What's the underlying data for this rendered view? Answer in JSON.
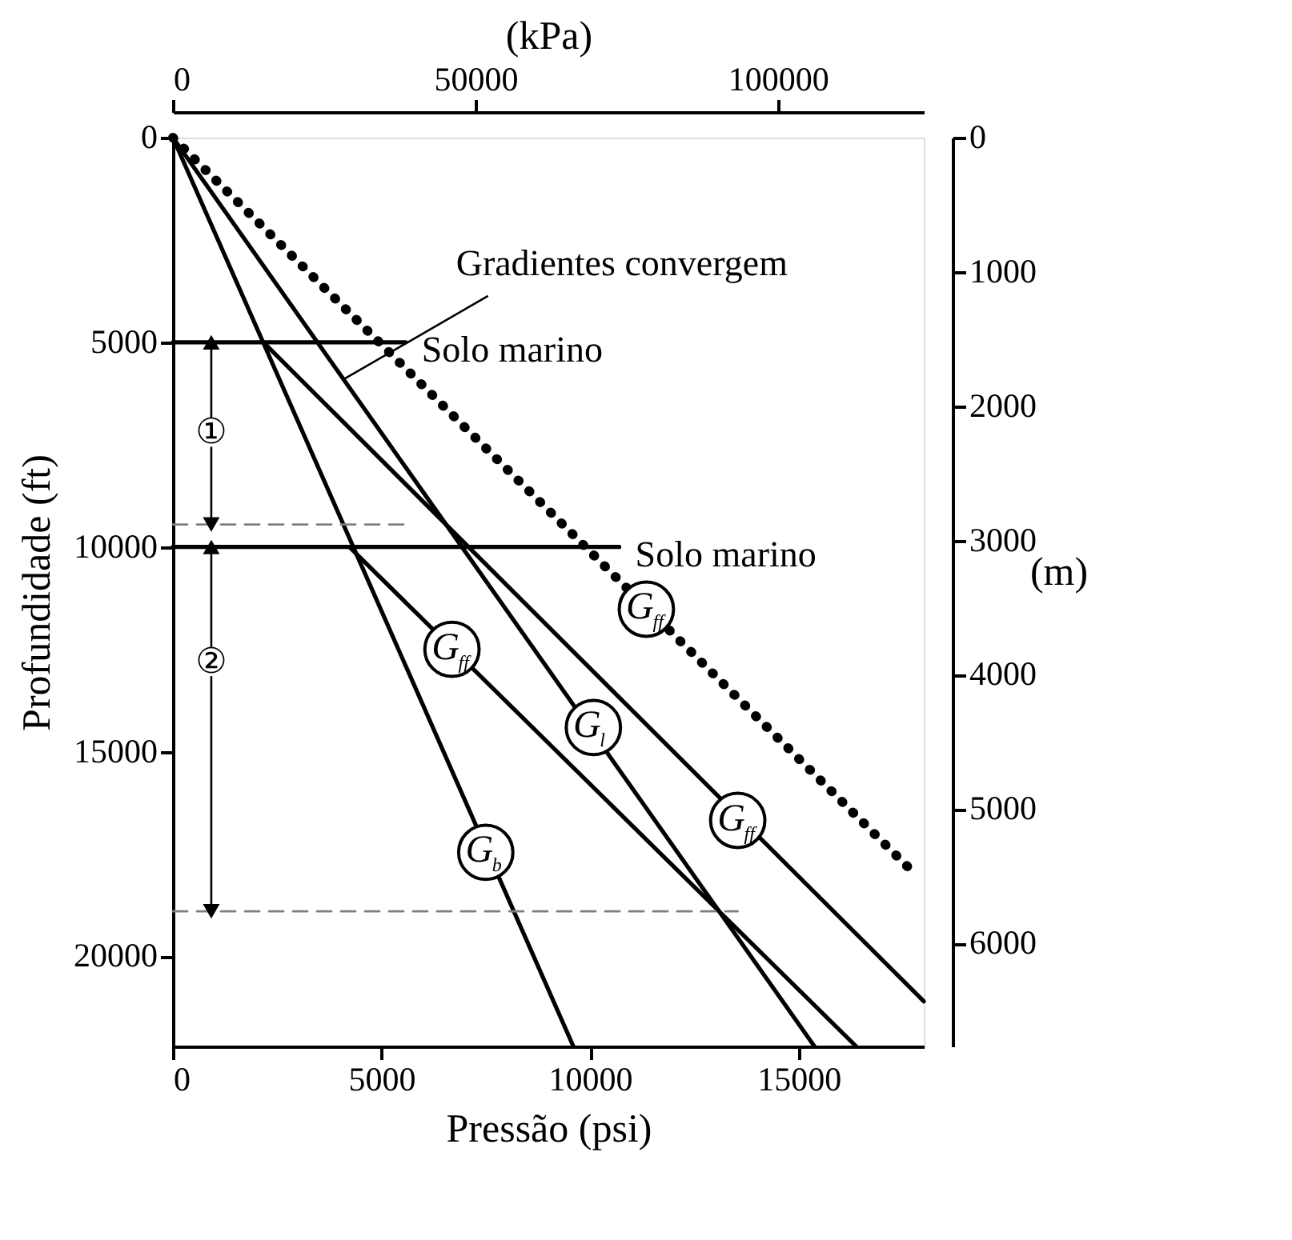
{
  "chart_data": {
    "type": "line",
    "xlabel": "Pressão (psi)",
    "ylabel": "Profundidade (ft)",
    "x2label": "(kPa)",
    "y2label": "(m)",
    "xlim": [
      0,
      18000
    ],
    "xticks": [
      0,
      5000,
      10000,
      15000
    ],
    "x2lim": [
      0,
      124100
    ],
    "x2ticks": [
      0,
      50000,
      100000
    ],
    "ylim": [
      22200,
      0
    ],
    "yticks": [
      0,
      5000,
      10000,
      15000,
      20000
    ],
    "y2lim": [
      6767,
      0
    ],
    "y2ticks": [
      0,
      1000,
      2000,
      3000,
      4000,
      5000,
      6000
    ],
    "grid": false,
    "marker": "none",
    "line_style": "solid",
    "series": [
      {
        "color": "#000000",
        "x": [
          0,
          9600
        ],
        "values": [
          0,
          22200
        ]
      },
      {
        "color": "#000000",
        "x": [
          0,
          15380
        ],
        "values": [
          0,
          22200
        ]
      },
      {
        "color": "#000000",
        "x": [
          2170,
          18000
        ],
        "values": [
          5000,
          21100
        ]
      },
      {
        "color": "#000000",
        "x": [
          4230,
          16380
        ],
        "values": [
          10000,
          22200
        ]
      },
      {
        "color": "#000000",
        "line_style": "dotted",
        "x": [
          0,
          17800
        ],
        "values": [
          0,
          18000
        ]
      },
      {
        "color": "#000000",
        "x": [
          0,
          5580
        ],
        "values": [
          5000,
          5000
        ]
      },
      {
        "color": "#000000",
        "x": [
          0,
          10700
        ],
        "values": [
          10000,
          10000
        ]
      },
      {
        "color": "#808080",
        "line_style": "dashed",
        "x": [
          0,
          5580
        ],
        "values": [
          9450,
          9450
        ]
      },
      {
        "color": "#808080",
        "line_style": "dashed",
        "x": [
          0,
          13540
        ],
        "values": [
          18900,
          18900
        ]
      },
      {
        "color": "#000000",
        "marker": "triangle",
        "x": [
          920,
          920
        ],
        "values": [
          5000,
          9450
        ]
      },
      {
        "color": "#000000",
        "marker": "triangle",
        "x": [
          920,
          920
        ],
        "values": [
          10000,
          18900
        ]
      }
    ],
    "annotations": [
      {
        "text": "Gradientes convergem",
        "x": 4100,
        "y": 5900
      },
      {
        "text": "Solo marino",
        "x": 5580,
        "y": 5000
      },
      {
        "text": "Solo marino",
        "x": 10700,
        "y": 10000
      },
      {
        "text": "①",
        "x": 920,
        "y": 7200
      },
      {
        "text": "②",
        "x": 920,
        "y": 12800
      },
      {
        "text": "G$_{b}$",
        "x": 7500,
        "y": 17460
      },
      {
        "text": "G$_{ff}$",
        "x": 6690,
        "y": 12500
      },
      {
        "text": "G$_{l}$",
        "x": 10080,
        "y": 14410
      },
      {
        "text": "G$_{ff}$",
        "x": 13540,
        "y": 16680
      },
      {
        "text": "G$_{ff}$",
        "x": 11350,
        "y": 11520
      }
    ]
  }
}
